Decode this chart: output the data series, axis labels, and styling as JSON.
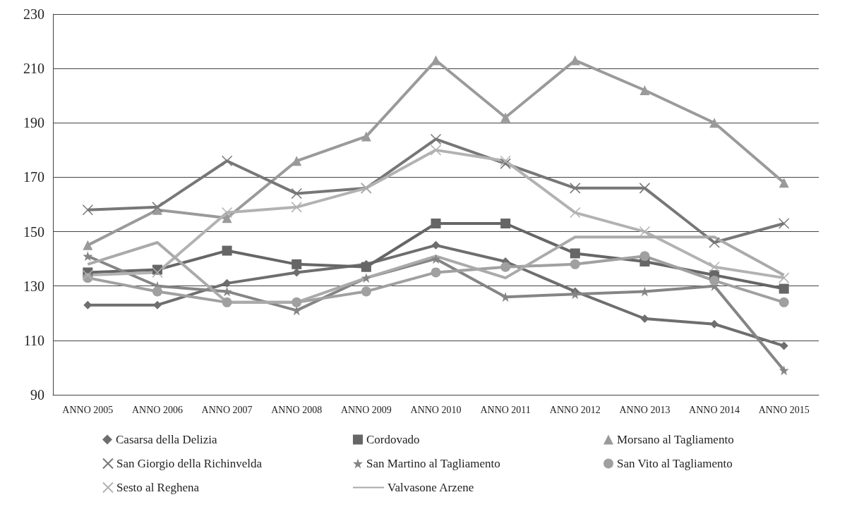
{
  "chart_data": {
    "type": "line",
    "categories": [
      "ANNO 2005",
      "ANNO 2006",
      "ANNO 2007",
      "ANNO 2008",
      "ANNO 2009",
      "ANNO 2010",
      "ANNO 2011",
      "ANNO 2012",
      "ANNO 2013",
      "ANNO 2014",
      "ANNO 2015"
    ],
    "series": [
      {
        "name": "Casarsa della Delizia",
        "color": "#6e6e6e",
        "marker": "diamond",
        "values": [
          123,
          123,
          131,
          135,
          138,
          145,
          139,
          128,
          118,
          116,
          108
        ]
      },
      {
        "name": "Cordovado",
        "color": "#666666",
        "marker": "square",
        "values": [
          135,
          136,
          143,
          138,
          137,
          153,
          153,
          142,
          139,
          134,
          129
        ]
      },
      {
        "name": "Morsano al Tagliamento",
        "color": "#9a9a9a",
        "marker": "triangle",
        "values": [
          145,
          158,
          155,
          176,
          185,
          213,
          192,
          213,
          202,
          190,
          168
        ]
      },
      {
        "name": "San Giorgio della Richinvelda",
        "color": "#777777",
        "marker": "cross",
        "values": [
          158,
          159,
          176,
          164,
          166,
          184,
          175,
          166,
          166,
          146,
          153
        ]
      },
      {
        "name": "San Martino al Tagliamento",
        "color": "#858585",
        "marker": "star",
        "values": [
          141,
          130,
          128,
          121,
          133,
          140,
          126,
          127,
          128,
          130,
          99
        ]
      },
      {
        "name": "San Vito al Tagliamento",
        "color": "#a0a0a0",
        "marker": "circle",
        "values": [
          133,
          128,
          124,
          124,
          128,
          135,
          137,
          138,
          141,
          132,
          124
        ]
      },
      {
        "name": "Sesto al Reghena",
        "color": "#b2b2b2",
        "marker": "cross",
        "values": [
          134,
          135,
          157,
          159,
          166,
          180,
          176,
          157,
          150,
          137,
          133
        ]
      },
      {
        "name": "Valvasone Arzene",
        "color": "#aaaaaa",
        "marker": "none",
        "values": [
          138,
          146,
          124,
          124,
          133,
          141,
          133,
          148,
          148,
          148,
          134
        ]
      }
    ],
    "ylim": [
      90,
      230
    ],
    "yticks": [
      90,
      110,
      130,
      150,
      170,
      190,
      210,
      230
    ],
    "grid": "y",
    "legend": "bottom"
  }
}
